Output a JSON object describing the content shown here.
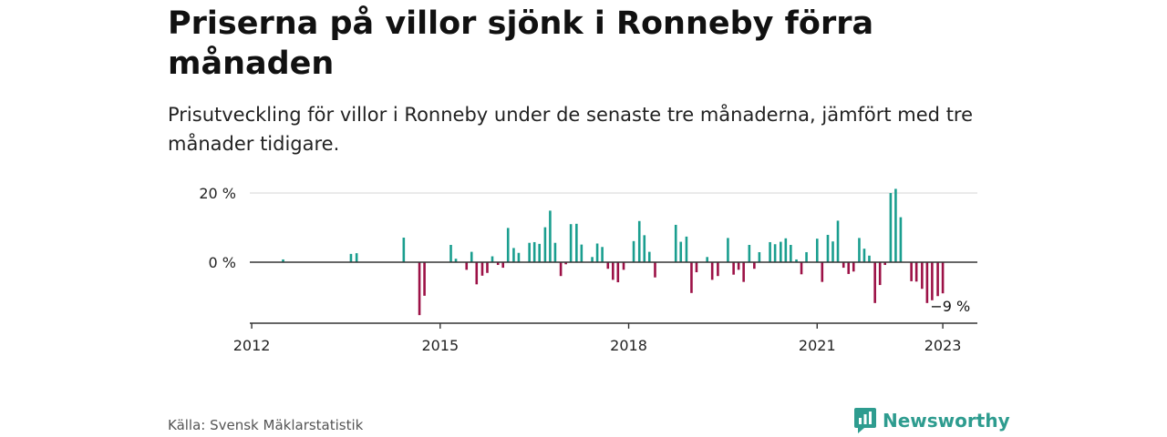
{
  "title": "Priserna på villor sjönk i Ronneby förra månaden",
  "subtitle": "Prisutveckling för villor i Ronneby under de senaste tre månaderna, jämfört med tre månader tidigare.",
  "source": "Källa: Svensk Mäklarstatistik",
  "brand": "Newsworthy",
  "colors": {
    "positive": "#1a9e8f",
    "negative": "#9c1146",
    "grid": "#dddddd",
    "axis": "#333333",
    "brand": "#2e9c8f"
  },
  "chart_data": {
    "type": "bar",
    "x_unit": "year",
    "xlim": [
      2011.97,
      2023.55
    ],
    "ylim": [
      -17,
      21
    ],
    "y_ticks": [
      {
        "value": 0,
        "label": "0 %"
      },
      {
        "value": 20,
        "label": "20 %"
      }
    ],
    "x_ticks": [
      {
        "value": 2012,
        "label": "2012"
      },
      {
        "value": 2015,
        "label": "2015"
      },
      {
        "value": 2018,
        "label": "2018"
      },
      {
        "value": 2021,
        "label": "2021"
      },
      {
        "value": 2023,
        "label": "2023"
      }
    ],
    "annotation": {
      "text": "−9 %",
      "x": 2022.8,
      "y": -9
    },
    "bars": [
      {
        "x": 2012.5,
        "value": 0.8
      },
      {
        "x": 2013.58,
        "value": 2.4
      },
      {
        "x": 2013.67,
        "value": 2.6
      },
      {
        "x": 2014.42,
        "value": 7.1
      },
      {
        "x": 2014.67,
        "value": -15.3
      },
      {
        "x": 2014.75,
        "value": -9.7
      },
      {
        "x": 2015.17,
        "value": 5.0
      },
      {
        "x": 2015.25,
        "value": 1.0
      },
      {
        "x": 2015.42,
        "value": -2.2
      },
      {
        "x": 2015.5,
        "value": 3.0
      },
      {
        "x": 2015.58,
        "value": -6.4
      },
      {
        "x": 2015.67,
        "value": -3.9
      },
      {
        "x": 2015.75,
        "value": -3.1
      },
      {
        "x": 2015.83,
        "value": 1.7
      },
      {
        "x": 2015.92,
        "value": -0.8
      },
      {
        "x": 2016.0,
        "value": -1.6
      },
      {
        "x": 2016.08,
        "value": 9.9
      },
      {
        "x": 2016.17,
        "value": 4.1
      },
      {
        "x": 2016.25,
        "value": 2.7
      },
      {
        "x": 2016.42,
        "value": 5.6
      },
      {
        "x": 2016.5,
        "value": 5.8
      },
      {
        "x": 2016.58,
        "value": 5.3
      },
      {
        "x": 2016.67,
        "value": 10.1
      },
      {
        "x": 2016.75,
        "value": 14.9
      },
      {
        "x": 2016.83,
        "value": 5.6
      },
      {
        "x": 2016.92,
        "value": -4.0
      },
      {
        "x": 2017.0,
        "value": -0.6
      },
      {
        "x": 2017.08,
        "value": 11.0
      },
      {
        "x": 2017.17,
        "value": 11.1
      },
      {
        "x": 2017.25,
        "value": 5.1
      },
      {
        "x": 2017.42,
        "value": 1.5
      },
      {
        "x": 2017.5,
        "value": 5.4
      },
      {
        "x": 2017.58,
        "value": 4.4
      },
      {
        "x": 2017.67,
        "value": -1.9
      },
      {
        "x": 2017.75,
        "value": -5.1
      },
      {
        "x": 2017.83,
        "value": -5.8
      },
      {
        "x": 2017.92,
        "value": -2.2
      },
      {
        "x": 2018.08,
        "value": 6.1
      },
      {
        "x": 2018.17,
        "value": 11.9
      },
      {
        "x": 2018.25,
        "value": 7.8
      },
      {
        "x": 2018.33,
        "value": 3.0
      },
      {
        "x": 2018.42,
        "value": -4.4
      },
      {
        "x": 2018.75,
        "value": 10.8
      },
      {
        "x": 2018.83,
        "value": 5.9
      },
      {
        "x": 2018.92,
        "value": 7.4
      },
      {
        "x": 2019.0,
        "value": -8.9
      },
      {
        "x": 2019.08,
        "value": -2.9
      },
      {
        "x": 2019.25,
        "value": 1.5
      },
      {
        "x": 2019.33,
        "value": -5.1
      },
      {
        "x": 2019.42,
        "value": -4.0
      },
      {
        "x": 2019.58,
        "value": 7.0
      },
      {
        "x": 2019.67,
        "value": -3.6
      },
      {
        "x": 2019.75,
        "value": -2.2
      },
      {
        "x": 2019.83,
        "value": -5.7
      },
      {
        "x": 2019.92,
        "value": 5.0
      },
      {
        "x": 2020.0,
        "value": -1.9
      },
      {
        "x": 2020.08,
        "value": 2.9
      },
      {
        "x": 2020.25,
        "value": 5.8
      },
      {
        "x": 2020.33,
        "value": 5.2
      },
      {
        "x": 2020.42,
        "value": 5.9
      },
      {
        "x": 2020.5,
        "value": 6.9
      },
      {
        "x": 2020.58,
        "value": 5.0
      },
      {
        "x": 2020.67,
        "value": 0.8
      },
      {
        "x": 2020.75,
        "value": -3.5
      },
      {
        "x": 2020.83,
        "value": 2.9
      },
      {
        "x": 2021.0,
        "value": 6.8
      },
      {
        "x": 2021.08,
        "value": -5.7
      },
      {
        "x": 2021.17,
        "value": 7.9
      },
      {
        "x": 2021.25,
        "value": 6.0
      },
      {
        "x": 2021.33,
        "value": 12.0
      },
      {
        "x": 2021.42,
        "value": -1.6
      },
      {
        "x": 2021.5,
        "value": -3.4
      },
      {
        "x": 2021.58,
        "value": -2.7
      },
      {
        "x": 2021.67,
        "value": 7.0
      },
      {
        "x": 2021.75,
        "value": 3.9
      },
      {
        "x": 2021.83,
        "value": 1.9
      },
      {
        "x": 2021.92,
        "value": -11.8
      },
      {
        "x": 2022.0,
        "value": -6.6
      },
      {
        "x": 2022.08,
        "value": -0.8
      },
      {
        "x": 2022.17,
        "value": 20.0
      },
      {
        "x": 2022.25,
        "value": 21.2
      },
      {
        "x": 2022.33,
        "value": 13.0
      },
      {
        "x": 2022.5,
        "value": -5.5
      },
      {
        "x": 2022.58,
        "value": -5.6
      },
      {
        "x": 2022.67,
        "value": -7.7
      },
      {
        "x": 2022.75,
        "value": -11.8
      },
      {
        "x": 2022.83,
        "value": -11.0
      },
      {
        "x": 2022.92,
        "value": -9.8
      },
      {
        "x": 2023.0,
        "value": -9.0
      }
    ]
  }
}
